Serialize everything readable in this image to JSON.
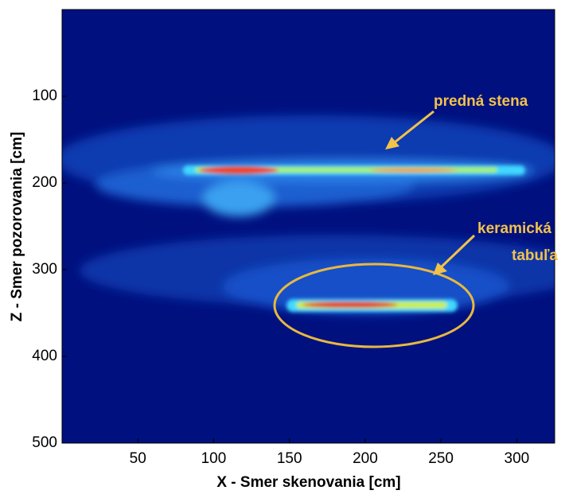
{
  "chart_data": {
    "type": "heatmap",
    "xlabel": "X - Smer skenovania [cm]",
    "ylabel": "Z - Smer pozorovania [cm]",
    "xlim": [
      0,
      325
    ],
    "xticks": [
      50,
      100,
      150,
      200,
      250,
      300
    ],
    "ylim": [
      0,
      500
    ],
    "yticks": [
      100,
      200,
      300,
      400,
      500
    ],
    "y_reversed": true,
    "annotations": [
      "predná stena",
      "keramická",
      "tabuľa"
    ]
  }
}
